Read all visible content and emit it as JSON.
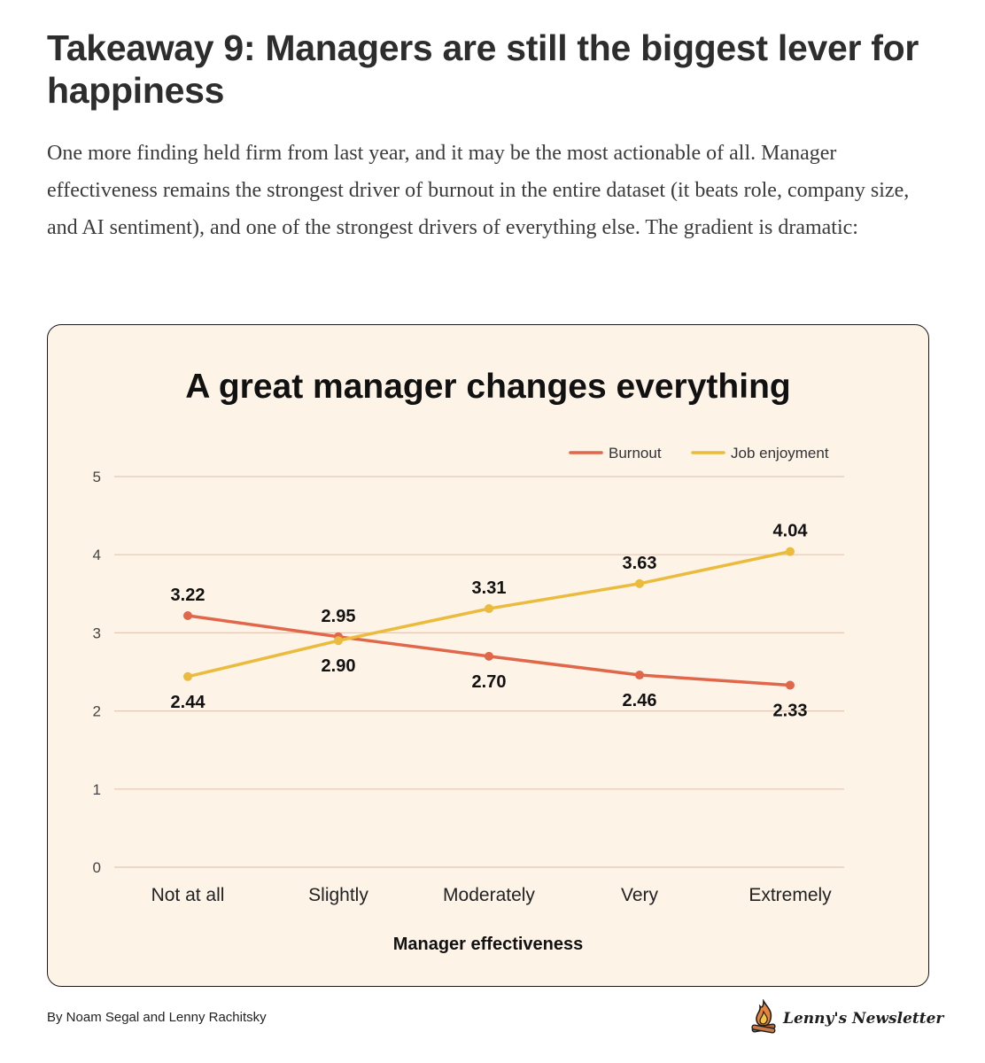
{
  "article": {
    "heading": "Takeaway 9: Managers are still the biggest lever for happiness",
    "intro": "One more finding held firm from last year, and it may be the most actionable of all. Manager effectiveness remains the strongest driver of burnout in the entire dataset (it beats role, company size, and AI sentiment), and one of the strongest drivers of everything else. The gradient is dramatic:"
  },
  "chart_data": {
    "type": "line",
    "title": "A great manager changes everything",
    "xlabel": "Manager effectiveness",
    "ylabel": "",
    "categories": [
      "Not at all",
      "Slightly",
      "Moderately",
      "Very",
      "Extremely"
    ],
    "ylim": [
      0,
      5
    ],
    "yticks": [
      "0",
      "1",
      "2",
      "3",
      "4",
      "5"
    ],
    "grid": true,
    "legend_position": "top-right",
    "series": [
      {
        "name": "Burnout",
        "color": "#e0674a",
        "values": [
          3.22,
          2.95,
          2.7,
          2.46,
          2.33
        ],
        "labels": [
          "3.22",
          "2.95",
          "2.70",
          "2.46",
          "2.33"
        ],
        "label_side": [
          "above",
          "above",
          "below",
          "below",
          "below"
        ]
      },
      {
        "name": "Job enjoyment",
        "color": "#eabb3c",
        "values": [
          2.44,
          2.9,
          3.31,
          3.63,
          4.04
        ],
        "labels": [
          "2.44",
          "2.90",
          "3.31",
          "3.63",
          "4.04"
        ],
        "label_side": [
          "below",
          "below",
          "above",
          "above",
          "above"
        ]
      }
    ]
  },
  "footer": {
    "byline": "By Noam Segal and Lenny Rachitsky",
    "brand": "Lenny's Newsletter",
    "brand_icon": "campfire-icon"
  }
}
